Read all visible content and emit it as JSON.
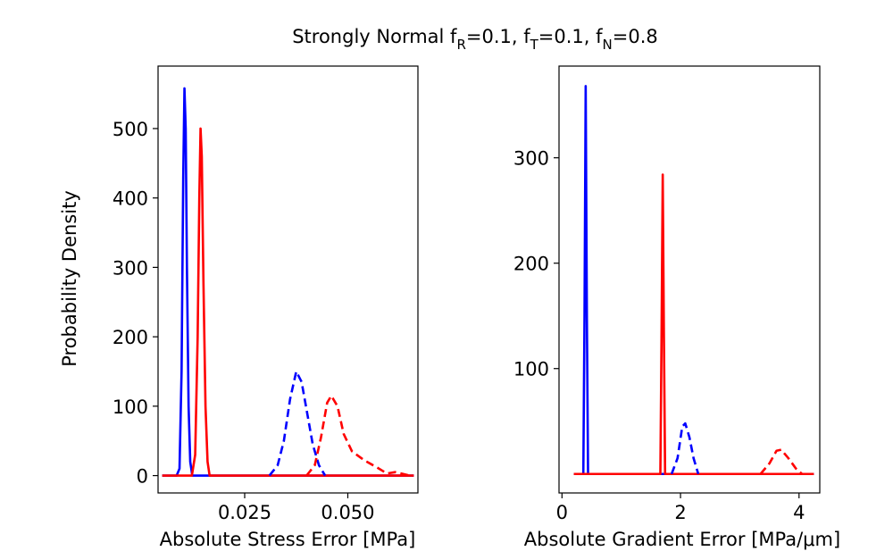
{
  "chart_data": [
    {
      "type": "line",
      "title_parts": [
        "Strongly Normal f",
        "R",
        "=0.1, f",
        "T",
        "=0.1, f",
        "N",
        "=0.8"
      ],
      "xlabel": "Absolute Stress Error [MPa]",
      "ylabel": "Probability Density",
      "xlim": [
        0.004,
        0.067
      ],
      "ylim": [
        -25,
        590
      ],
      "xticks": [
        {
          "v": 0.025,
          "label": "0.025"
        },
        {
          "v": 0.05,
          "label": "0.050"
        }
      ],
      "yticks": [
        {
          "v": 0,
          "label": "0"
        },
        {
          "v": 100,
          "label": "100"
        },
        {
          "v": 200,
          "label": "200"
        },
        {
          "v": 300,
          "label": "300"
        },
        {
          "v": 400,
          "label": "400"
        },
        {
          "v": 500,
          "label": "500"
        }
      ],
      "series": [
        {
          "name": "blue-solid",
          "color": "#0000ff",
          "dash": false,
          "points": [
            [
              0.005,
              0
            ],
            [
              0.0085,
              0
            ],
            [
              0.0092,
              10
            ],
            [
              0.0097,
              150
            ],
            [
              0.0101,
              430
            ],
            [
              0.0104,
              558
            ],
            [
              0.0107,
              500
            ],
            [
              0.011,
              300
            ],
            [
              0.0114,
              100
            ],
            [
              0.0118,
              20
            ],
            [
              0.0123,
              0
            ],
            [
              0.066,
              0
            ]
          ]
        },
        {
          "name": "red-solid",
          "color": "#ff0000",
          "dash": false,
          "points": [
            [
              0.005,
              0
            ],
            [
              0.0122,
              0
            ],
            [
              0.013,
              30
            ],
            [
              0.0136,
              200
            ],
            [
              0.014,
              400
            ],
            [
              0.0143,
              500
            ],
            [
              0.0146,
              460
            ],
            [
              0.015,
              280
            ],
            [
              0.0155,
              100
            ],
            [
              0.016,
              20
            ],
            [
              0.0165,
              0
            ],
            [
              0.066,
              0
            ]
          ]
        },
        {
          "name": "blue-dashed",
          "color": "#0000ff",
          "dash": true,
          "points": [
            [
              0.031,
              0
            ],
            [
              0.033,
              15
            ],
            [
              0.0345,
              50
            ],
            [
              0.036,
              110
            ],
            [
              0.0375,
              150
            ],
            [
              0.0388,
              135
            ],
            [
              0.04,
              95
            ],
            [
              0.0415,
              45
            ],
            [
              0.043,
              15
            ],
            [
              0.0445,
              0
            ]
          ]
        },
        {
          "name": "red-dashed",
          "color": "#ff0000",
          "dash": true,
          "points": [
            [
              0.04,
              0
            ],
            [
              0.042,
              15
            ],
            [
              0.0435,
              55
            ],
            [
              0.045,
              105
            ],
            [
              0.046,
              115
            ],
            [
              0.0475,
              100
            ],
            [
              0.049,
              60
            ],
            [
              0.051,
              35
            ],
            [
              0.054,
              22
            ],
            [
              0.057,
              12
            ],
            [
              0.0595,
              3
            ],
            [
              0.0615,
              5
            ],
            [
              0.063,
              3
            ],
            [
              0.065,
              0
            ]
          ]
        }
      ]
    },
    {
      "type": "line",
      "xlabel": "Absolute Gradient Error [MPa/μm]",
      "ylabel": "",
      "xlim": [
        -0.05,
        4.35
      ],
      "ylim": [
        -18,
        387
      ],
      "xticks": [
        {
          "v": 0,
          "label": "0"
        },
        {
          "v": 2,
          "label": "2"
        },
        {
          "v": 4,
          "label": "4"
        }
      ],
      "yticks": [
        {
          "v": 100,
          "label": "100"
        },
        {
          "v": 200,
          "label": "200"
        },
        {
          "v": 300,
          "label": "300"
        }
      ],
      "series": [
        {
          "name": "blue-solid",
          "color": "#0000ff",
          "dash": false,
          "points": [
            [
              0.2,
              0
            ],
            [
              0.36,
              0
            ],
            [
              0.38,
              150
            ],
            [
              0.4,
              368
            ],
            [
              0.42,
              150
            ],
            [
              0.44,
              0
            ],
            [
              4.25,
              0
            ]
          ]
        },
        {
          "name": "red-solid",
          "color": "#ff0000",
          "dash": false,
          "points": [
            [
              0.2,
              0
            ],
            [
              1.66,
              0
            ],
            [
              1.68,
              130
            ],
            [
              1.7,
              284
            ],
            [
              1.72,
              130
            ],
            [
              1.74,
              0
            ],
            [
              4.25,
              0
            ]
          ]
        },
        {
          "name": "blue-dashed",
          "color": "#0000ff",
          "dash": true,
          "points": [
            [
              1.85,
              0
            ],
            [
              1.95,
              15
            ],
            [
              2.03,
              45
            ],
            [
              2.08,
              48
            ],
            [
              2.15,
              35
            ],
            [
              2.22,
              15
            ],
            [
              2.3,
              0
            ]
          ]
        },
        {
          "name": "red-dashed",
          "color": "#ff0000",
          "dash": true,
          "points": [
            [
              3.35,
              0
            ],
            [
              3.5,
              10
            ],
            [
              3.62,
              22
            ],
            [
              3.7,
              23
            ],
            [
              3.82,
              15
            ],
            [
              3.95,
              5
            ],
            [
              4.05,
              0
            ]
          ]
        }
      ]
    }
  ]
}
